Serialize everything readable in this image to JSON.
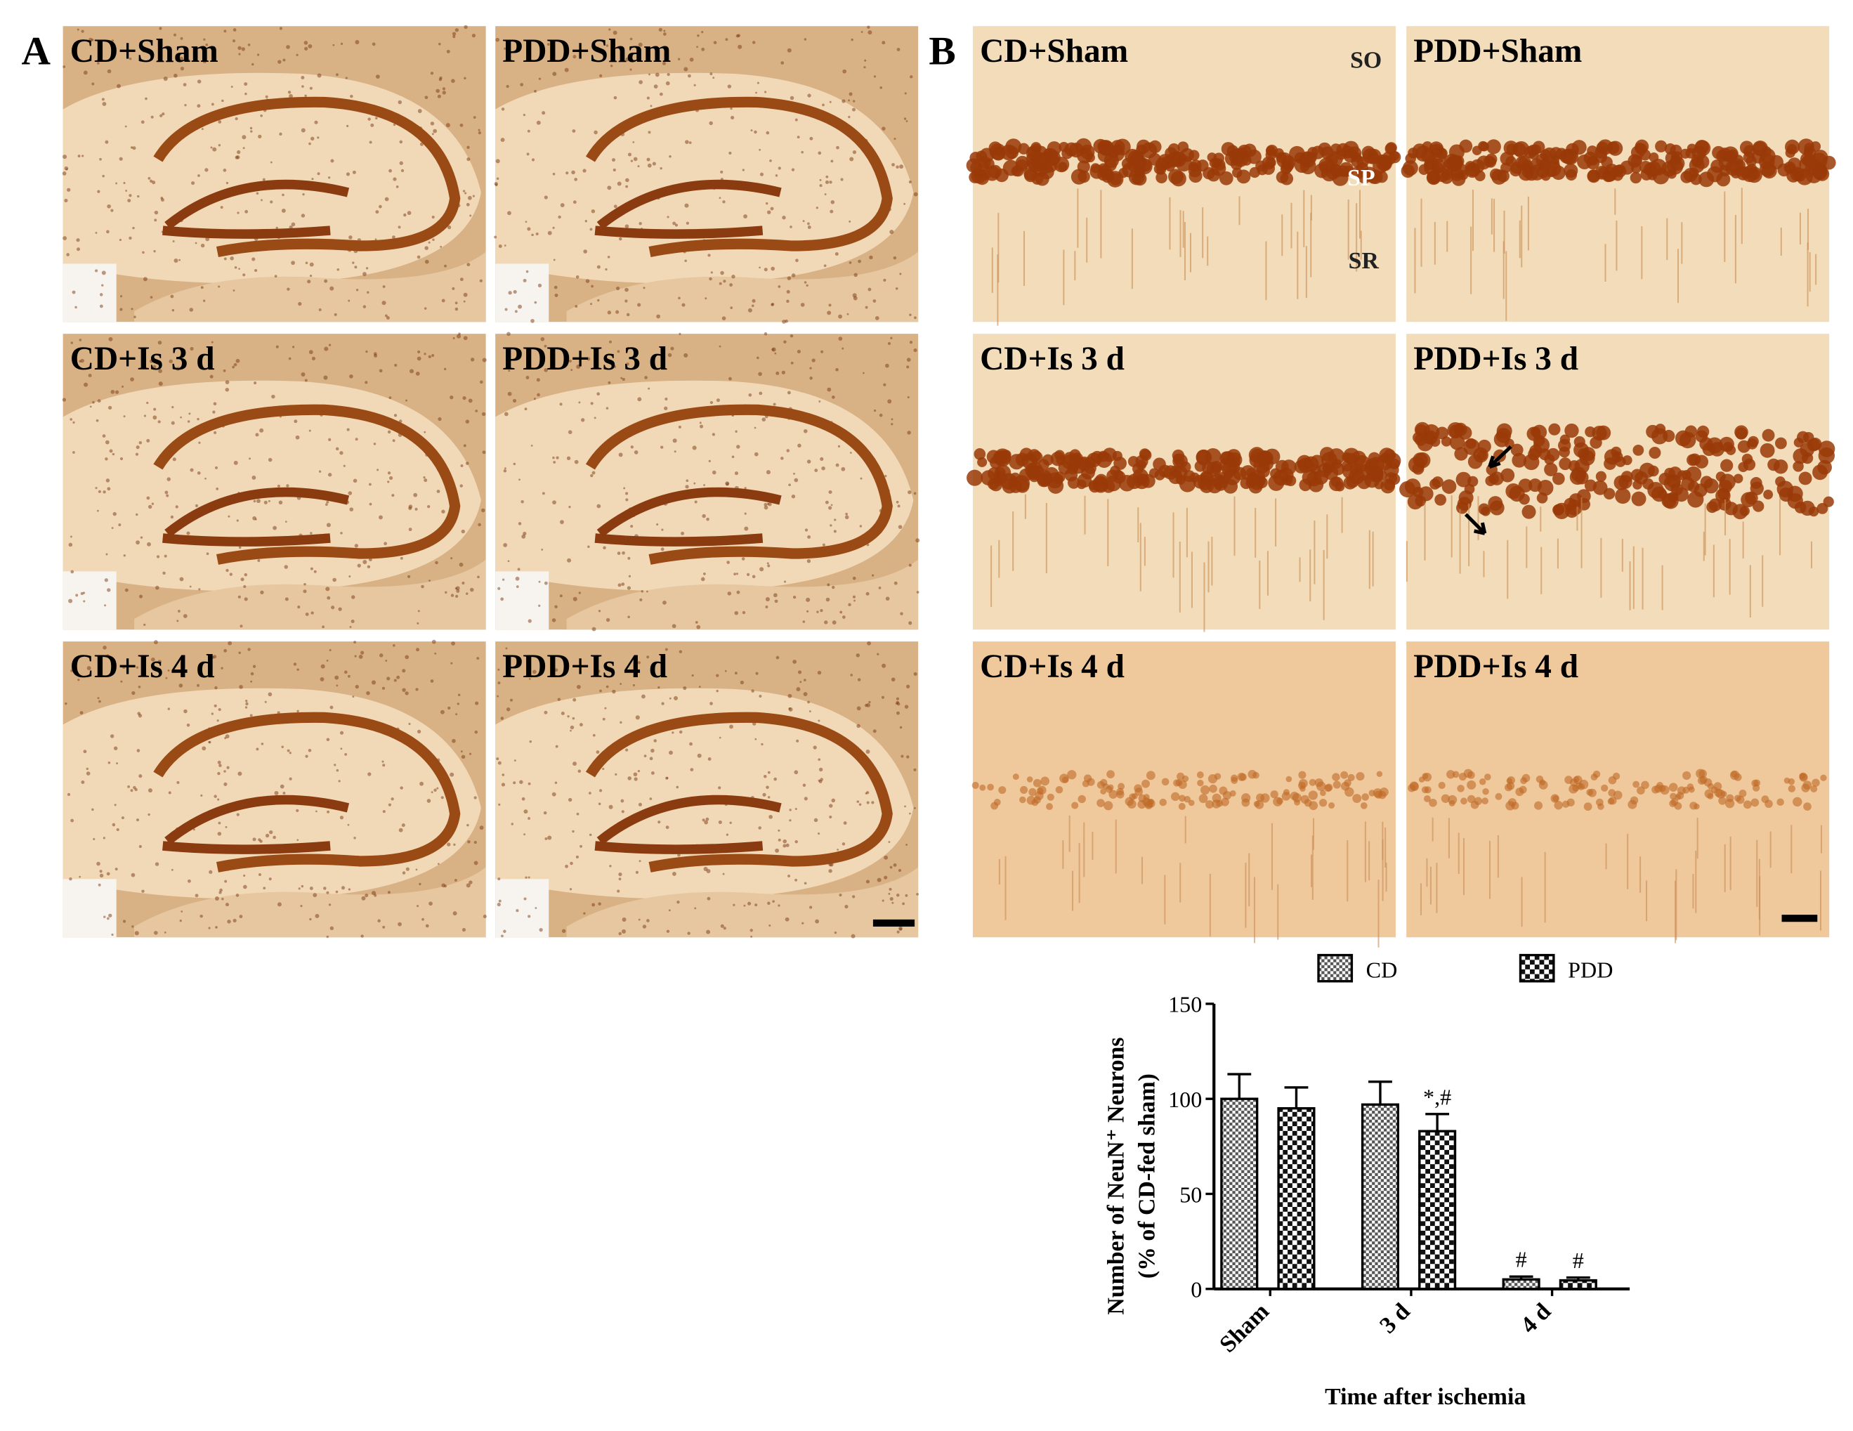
{
  "panel_a": {
    "label": "A",
    "images": [
      "CD+Sham",
      "PDD+Sham",
      "CD+Is 3 d",
      "PDD+Is 3 d",
      "CD+Is 4 d",
      "PDD+Is 4 d"
    ]
  },
  "panel_b": {
    "label": "B",
    "images": [
      "CD+Sham",
      "PDD+Sham",
      "CD+Is 3 d",
      "PDD+Is 3 d",
      "CD+Is 4 d",
      "PDD+Is 4 d"
    ],
    "layers": [
      "SO",
      "SP",
      "SR"
    ]
  },
  "chart_data": {
    "type": "bar",
    "ylabel": [
      "Number of NeuN⁺ Neurons",
      "(% of CD-fed sham)"
    ],
    "xlabel": "Time after ischemia",
    "categories": [
      "Sham",
      "3 d",
      "4 d"
    ],
    "series": [
      {
        "name": "CD",
        "color": "#000000",
        "values": [
          100,
          97,
          5
        ],
        "errors": [
          13,
          12,
          1.5
        ],
        "annotations": [
          null,
          null,
          "#"
        ]
      },
      {
        "name": "PDD",
        "color": "#000000",
        "values": [
          95,
          83,
          4.5
        ],
        "errors": [
          11,
          9,
          1.5
        ],
        "annotations": [
          null,
          "*,#",
          "#"
        ]
      }
    ],
    "ylim": [
      0,
      150
    ],
    "yticks": [
      0,
      50,
      100,
      150
    ]
  }
}
